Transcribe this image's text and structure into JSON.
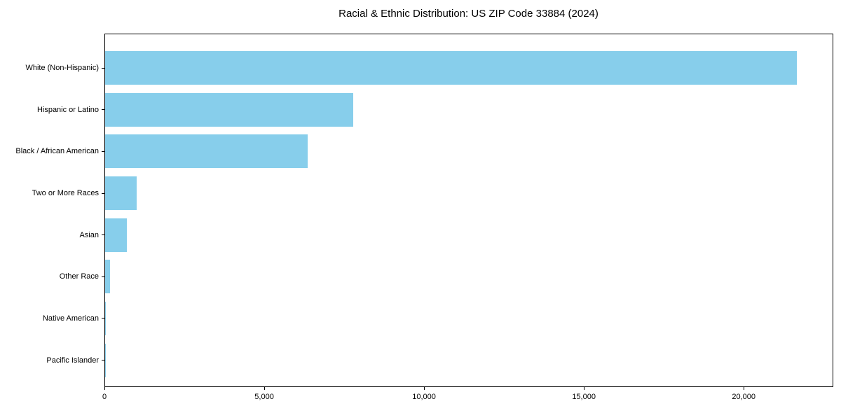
{
  "title": "Racial & Ethnic Distribution: US ZIP Code 33884 (2024)",
  "colors": {
    "bar": "#87CEEB",
    "axis": "#000000",
    "background": "#FFFFFF"
  },
  "chart_data": {
    "type": "bar",
    "orientation": "horizontal",
    "title": "Racial & Ethnic Distribution: US ZIP Code 33884 (2024)",
    "categories": [
      "White (Non-Hispanic)",
      "Hispanic or Latino",
      "Black / African American",
      "Two or More Races",
      "Asian",
      "Other Race",
      "Native American",
      "Pacific Islander"
    ],
    "values": [
      21650,
      7760,
      6345,
      985,
      680,
      150,
      20,
      8
    ],
    "xlabel": "",
    "ylabel": "",
    "xlim": [
      0,
      22780
    ],
    "xticks": [
      0,
      5000,
      10000,
      15000,
      20000
    ],
    "xtick_labels": [
      "0",
      "5,000",
      "10,000",
      "15,000",
      "20,000"
    ],
    "bar_color": "#87CEEB",
    "grid": false,
    "legend": null
  }
}
